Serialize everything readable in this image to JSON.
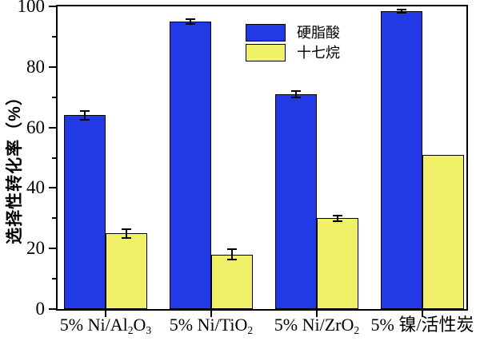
{
  "y_axis": {
    "label": "选择性转化率（%）",
    "tick_values": [
      0,
      20,
      40,
      60,
      80,
      100
    ],
    "tick_labels": [
      "0",
      "20",
      "40",
      "60",
      "80",
      "100"
    ],
    "minor_tick_values": [
      10,
      30,
      50,
      70,
      90
    ],
    "range": [
      0,
      100
    ]
  },
  "x_axis": {
    "category_parts": [
      [
        {
          "t": "5% Ni/Al",
          "sub": false
        },
        {
          "t": "2",
          "sub": true
        },
        {
          "t": "O",
          "sub": false
        },
        {
          "t": "3",
          "sub": true
        }
      ],
      [
        {
          "t": "5% Ni/TiO",
          "sub": false
        },
        {
          "t": "2",
          "sub": true
        }
      ],
      [
        {
          "t": "5% Ni/ZrO",
          "sub": false
        },
        {
          "t": "2",
          "sub": true
        }
      ],
      [
        {
          "t": "5% 镍/活性炭",
          "sub": false
        }
      ]
    ]
  },
  "legend": {
    "items": [
      {
        "label": "硬脂酸",
        "color": "#2239e6"
      },
      {
        "label": "十七烷",
        "color": "#f1f169"
      }
    ]
  },
  "chart_data": {
    "type": "bar",
    "title": "",
    "xlabel": "",
    "ylabel": "选择性转化率（%）",
    "ylim": [
      0,
      100
    ],
    "grid": false,
    "error_bars": true,
    "legend_position": "inside-top-center",
    "categories": [
      "5% Ni/Al₂O₃",
      "5% Ni/TiO₂",
      "5% Ni/ZrO₂",
      "5% 镍/活性炭"
    ],
    "series": [
      {
        "name": "硬脂酸",
        "color": "#2239e6",
        "values": [
          64,
          95,
          71,
          98.5
        ],
        "errors": [
          1.5,
          0.7,
          1.0,
          0.5
        ]
      },
      {
        "name": "十七烷",
        "color": "#f1f169",
        "values": [
          25,
          18,
          30,
          51
        ],
        "errors": [
          1.5,
          1.7,
          1.0,
          0
        ]
      }
    ]
  }
}
